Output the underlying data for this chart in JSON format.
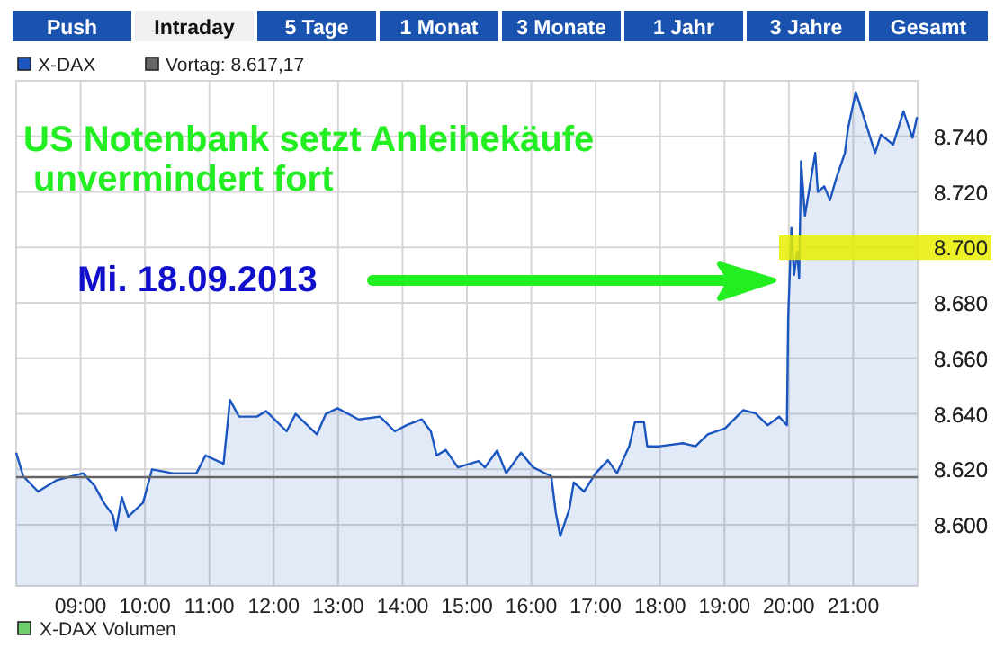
{
  "chart_data": {
    "type": "area",
    "title": "US Notenbank setzt Anleihekäufe\n unvermindert fort",
    "subtitle": "Mi. 18.09.2013",
    "annotations": [
      "Push",
      "Intraday",
      "5 Tage",
      "1 Monat",
      "3 Monate",
      "1 Jahr",
      "3 Jahre",
      "Gesamt",
      "X-DAX Volumen"
    ],
    "xlim": [
      8,
      22
    ],
    "xticks": [
      {
        "value": 9,
        "label": "09:00"
      },
      {
        "value": 10,
        "label": "10:00"
      },
      {
        "value": 11,
        "label": "11:00"
      },
      {
        "value": 12,
        "label": "12:00"
      },
      {
        "value": 13,
        "label": "13:00"
      },
      {
        "value": 14,
        "label": "14:00"
      },
      {
        "value": 15,
        "label": "15:00"
      },
      {
        "value": 16,
        "label": "16:00"
      },
      {
        "value": 17,
        "label": "17:00"
      },
      {
        "value": 18,
        "label": "18:00"
      },
      {
        "value": 19,
        "label": "19:00"
      },
      {
        "value": 20,
        "label": "20:00"
      },
      {
        "value": 21,
        "label": "21:00"
      }
    ],
    "ylim": [
      8578,
      8760
    ],
    "yticks": [
      {
        "value": 8600,
        "label": "8.600"
      },
      {
        "value": 8620,
        "label": "8.620"
      },
      {
        "value": 8640,
        "label": "8.640"
      },
      {
        "value": 8660,
        "label": "8.660"
      },
      {
        "value": 8680,
        "label": "8.680"
      },
      {
        "value": 8700,
        "label": "8.700"
      },
      {
        "value": 8720,
        "label": "8.720"
      },
      {
        "value": 8740,
        "label": "8.740"
      }
    ],
    "grid": true,
    "legend": "top left",
    "series": [
      {
        "name": "X-DAX",
        "color": "#1a55c0",
        "x": [
          8.0,
          8.11,
          8.34,
          8.62,
          9.04,
          9.22,
          9.36,
          9.5,
          9.55,
          9.64,
          9.74,
          9.97,
          10.11,
          10.43,
          10.8,
          10.94,
          11.22,
          11.32,
          11.46,
          11.74,
          11.88,
          12.2,
          12.34,
          12.67,
          12.81,
          12.99,
          13.32,
          13.65,
          13.88,
          14.07,
          14.3,
          14.44,
          14.53,
          14.67,
          14.86,
          15.18,
          15.28,
          15.47,
          15.61,
          15.84,
          16.03,
          16.31,
          16.38,
          16.45,
          16.59,
          16.66,
          16.82,
          17.0,
          17.19,
          17.33,
          17.52,
          17.61,
          17.75,
          17.8,
          17.99,
          18.36,
          18.55,
          18.74,
          19.01,
          19.29,
          19.48,
          19.67,
          19.85,
          19.97,
          19.99,
          20.04,
          20.08,
          20.13,
          20.16,
          20.19,
          20.25,
          20.41,
          20.45,
          20.55,
          20.64,
          20.73,
          20.87,
          20.92,
          21.04,
          21.15,
          21.34,
          21.43,
          21.62,
          21.78,
          21.92,
          21.99
        ],
        "values": [
          8626,
          8617.5,
          8612,
          8616,
          8618.6,
          8614,
          8608,
          8603.5,
          8598,
          8610,
          8603,
          8608,
          8620,
          8618.6,
          8618.6,
          8625,
          8622,
          8645,
          8639,
          8639,
          8641,
          8633.7,
          8640,
          8632.6,
          8640,
          8642,
          8638,
          8639,
          8633.7,
          8636,
          8638,
          8633.7,
          8625,
          8627,
          8620.7,
          8623,
          8620.7,
          8626.8,
          8618.6,
          8626,
          8620.7,
          8617.5,
          8604.5,
          8595.9,
          8605.6,
          8615.3,
          8612,
          8618.6,
          8623.3,
          8618.6,
          8628.3,
          8637,
          8637,
          8628.3,
          8628.3,
          8629.4,
          8628.3,
          8632.6,
          8634.8,
          8641.3,
          8640.2,
          8635.9,
          8639,
          8635.9,
          8674.7,
          8707,
          8690,
          8698.5,
          8688.8,
          8731,
          8711.4,
          8734,
          8720,
          8722,
          8717,
          8724.4,
          8734,
          8743,
          8756,
          8748,
          8734,
          8740.6,
          8737,
          8749,
          8739.5,
          8747
        ]
      }
    ],
    "ref_lines": [
      {
        "axis": "y",
        "value": 8617.17,
        "label": "Vortag: 8.617,17",
        "color": "#666666"
      }
    ],
    "bands": [
      {
        "axis": "y",
        "from": 8695.5,
        "to": 8704.3,
        "color": "#e8ee00"
      }
    ]
  }
}
